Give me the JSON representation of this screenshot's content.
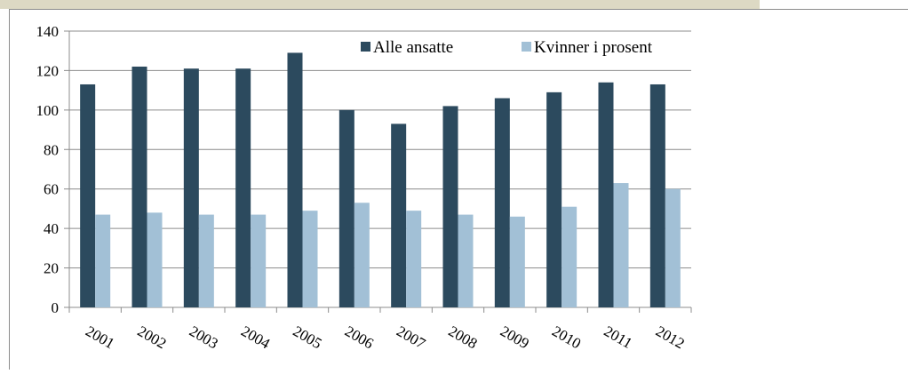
{
  "chart_data": {
    "type": "bar",
    "categories": [
      "2001",
      "2002",
      "2003",
      "2004",
      "2005",
      "2006",
      "2007",
      "2008",
      "2009",
      "2010",
      "2011",
      "2012"
    ],
    "series": [
      {
        "name": "Alle ansatte",
        "color": "#2c4a5e",
        "values": [
          113,
          122,
          121,
          121,
          129,
          100,
          93,
          102,
          106,
          109,
          114,
          113
        ]
      },
      {
        "name": "Kvinner i prosent",
        "color": "#a2c0d6",
        "values": [
          47,
          48,
          47,
          47,
          49,
          53,
          49,
          47,
          46,
          51,
          63,
          60
        ]
      }
    ],
    "ylim": [
      0,
      140
    ],
    "yticks": [
      0,
      20,
      40,
      60,
      80,
      100,
      120,
      140
    ],
    "grid": true,
    "legend": "top-right"
  }
}
